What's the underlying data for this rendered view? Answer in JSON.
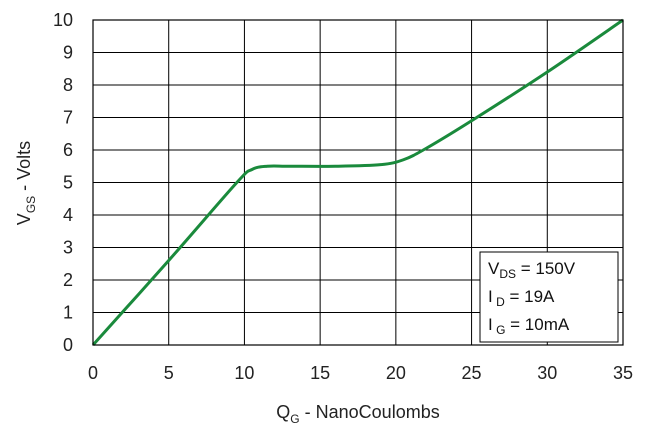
{
  "chart_data": {
    "type": "line",
    "xlabel": {
      "main": "Q",
      "sub": "G",
      "rest": " - NanoCoulombs"
    },
    "ylabel": {
      "main": "V",
      "sub": "GS",
      "rest": " - Volts"
    },
    "xlim": [
      0,
      35
    ],
    "ylim": [
      0,
      10
    ],
    "x_ticks": [
      0,
      5,
      10,
      15,
      20,
      25,
      30,
      35
    ],
    "y_ticks": [
      0,
      1,
      2,
      3,
      4,
      5,
      6,
      7,
      8,
      9,
      10
    ],
    "grid": true,
    "line_color": "#1a8a3c",
    "series": [
      {
        "x": [
          0,
          5,
          9.5,
          10.5,
          11.5,
          13,
          16,
          19,
          20.5,
          22,
          25,
          30,
          35
        ],
        "y": [
          0,
          2.6,
          5.0,
          5.4,
          5.5,
          5.5,
          5.5,
          5.55,
          5.7,
          6.05,
          6.9,
          8.4,
          10.0
        ]
      }
    ],
    "annotation": [
      {
        "main": "V",
        "sub": "DS",
        "rest": " = 150V"
      },
      {
        "main": "I",
        "sub": " D",
        "rest": " = 19A"
      },
      {
        "main": "I",
        "sub": " G",
        "rest": " = 10mA"
      }
    ]
  }
}
